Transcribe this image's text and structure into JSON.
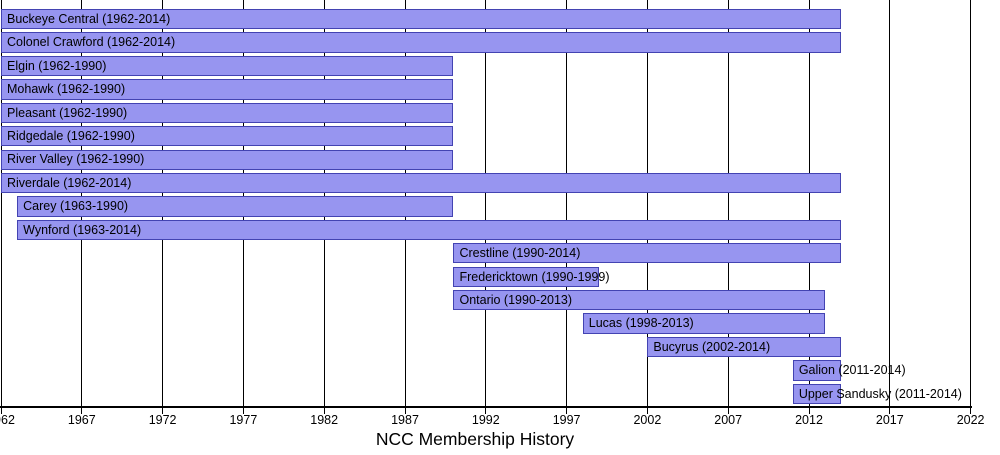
{
  "chart_data": {
    "type": "bar",
    "variant": "gantt-timeline",
    "title": "NCC Membership History",
    "grid": true,
    "legend": false,
    "colors": {
      "bar_fill": "#9795f0",
      "bar_border": "#4343b2",
      "gridline": "#000000",
      "text": "#000000",
      "background": "#ffffff"
    },
    "x_axis": {
      "min": 1962,
      "max": 2022,
      "ticks": [
        1962,
        1967,
        1972,
        1977,
        1982,
        1987,
        1992,
        1997,
        2002,
        2007,
        2012,
        2017,
        2022
      ],
      "tick_labels": [
        "1962",
        "1967",
        "1972",
        "1977",
        "1982",
        "1987",
        "1992",
        "1997",
        "2002",
        "2007",
        "2012",
        "2017",
        "2022"
      ]
    },
    "bars": [
      {
        "name": "Buckeye Central",
        "slug": "buckeye-central",
        "start": 1962,
        "end": 2014,
        "label": "Buckeye Central (1962-2014)"
      },
      {
        "name": "Colonel Crawford",
        "slug": "colonel-crawford",
        "start": 1962,
        "end": 2014,
        "label": "Colonel Crawford (1962-2014)"
      },
      {
        "name": "Elgin",
        "slug": "elgin",
        "start": 1962,
        "end": 1990,
        "label": "Elgin (1962-1990)"
      },
      {
        "name": "Mohawk",
        "slug": "mohawk",
        "start": 1962,
        "end": 1990,
        "label": "Mohawk (1962-1990)"
      },
      {
        "name": "Pleasant",
        "slug": "pleasant",
        "start": 1962,
        "end": 1990,
        "label": "Pleasant (1962-1990)"
      },
      {
        "name": "Ridgedale",
        "slug": "ridgedale",
        "start": 1962,
        "end": 1990,
        "label": "Ridgedale (1962-1990)"
      },
      {
        "name": "River Valley",
        "slug": "river-valley",
        "start": 1962,
        "end": 1990,
        "label": "River Valley (1962-1990)"
      },
      {
        "name": "Riverdale",
        "slug": "riverdale",
        "start": 1962,
        "end": 2014,
        "label": "Riverdale (1962-2014)"
      },
      {
        "name": "Carey",
        "slug": "carey",
        "start": 1963,
        "end": 1990,
        "label": "Carey (1963-1990)"
      },
      {
        "name": "Wynford",
        "slug": "wynford",
        "start": 1963,
        "end": 2014,
        "label": "Wynford (1963-2014)"
      },
      {
        "name": "Crestline",
        "slug": "crestline",
        "start": 1990,
        "end": 2014,
        "label": "Crestline (1990-2014)"
      },
      {
        "name": "Fredericktown",
        "slug": "fredericktown",
        "start": 1990,
        "end": 1999,
        "label": "Fredericktown (1990-1999)"
      },
      {
        "name": "Ontario",
        "slug": "ontario",
        "start": 1990,
        "end": 2013,
        "label": "Ontario (1990-2013)"
      },
      {
        "name": "Lucas",
        "slug": "lucas",
        "start": 1998,
        "end": 2013,
        "label": "Lucas (1998-2013)"
      },
      {
        "name": "Bucyrus",
        "slug": "bucyrus",
        "start": 2002,
        "end": 2014,
        "label": "Bucyrus (2002-2014)"
      },
      {
        "name": "Galion",
        "slug": "galion",
        "start": 2011,
        "end": 2014,
        "label": "Galion (2011-2014)"
      },
      {
        "name": "Upper Sandusky",
        "slug": "upper-sandusky",
        "start": 2011,
        "end": 2014,
        "label": "Upper Sandusky (2011-2014)"
      }
    ]
  }
}
